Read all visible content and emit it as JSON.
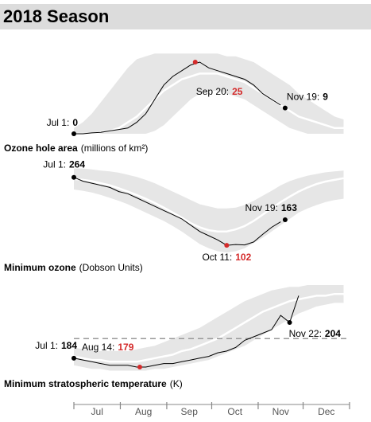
{
  "title": "2018 Season",
  "x_axis": {
    "xlim": [
      0,
      184
    ],
    "xticks": [
      0,
      31,
      62,
      92,
      123,
      153,
      184
    ],
    "categories": [
      "Jul",
      "Aug",
      "Sep",
      "Oct",
      "Nov",
      "Dec"
    ]
  },
  "chart_data": [
    {
      "type": "line",
      "title": "Ozone hole area",
      "unit_label": "(millions of km²)",
      "ylim": [
        0,
        30
      ],
      "color": "#000000",
      "x": [
        0,
        6,
        12,
        18,
        24,
        30,
        36,
        42,
        48,
        54,
        60,
        66,
        72,
        78,
        84,
        90,
        96,
        102,
        108,
        114,
        120,
        126,
        132,
        138,
        144,
        150,
        156,
        162,
        168,
        174,
        180
      ],
      "values": [
        0,
        0,
        0.3,
        0.5,
        1,
        1.5,
        2,
        4,
        7,
        12,
        17,
        20,
        22,
        24,
        25,
        23,
        22,
        21,
        20,
        19,
        17,
        14,
        12,
        10,
        null,
        null,
        null,
        null,
        null,
        null,
        null
      ],
      "band": {
        "color": "#e6e6e6",
        "high": [
          2,
          4,
          7,
          11,
          15,
          19,
          23,
          26,
          27,
          28,
          28,
          28,
          28,
          28,
          28,
          28,
          28,
          27,
          27,
          26,
          25,
          23,
          21,
          19,
          17,
          14,
          12,
          10,
          8,
          6,
          5
        ],
        "low": [
          0,
          0,
          0,
          0,
          0,
          0,
          0,
          0,
          0,
          1,
          3,
          6,
          9,
          12,
          14,
          15,
          15,
          14,
          13,
          12,
          10,
          8,
          6,
          4,
          2,
          1,
          0,
          0,
          0,
          0,
          0
        ]
      },
      "average": {
        "color": "#ffffff",
        "values": [
          0,
          0,
          0,
          0.5,
          1,
          2,
          4,
          6,
          9,
          12,
          15,
          17,
          19,
          20,
          21,
          21,
          21,
          20,
          19,
          18,
          16,
          14,
          12,
          10,
          8,
          6,
          5,
          4,
          3,
          2,
          2
        ]
      },
      "annotations": [
        {
          "label": "Jul 1:",
          "value": 0,
          "x": 0,
          "color": "#000000"
        },
        {
          "label": "Sep 20:",
          "value": 25,
          "x": 81,
          "color": "#d42a2a"
        },
        {
          "label": "Nov 19:",
          "value": 9,
          "x": 141,
          "color": "#000000"
        }
      ]
    },
    {
      "type": "line",
      "title": "Minimum ozone",
      "unit_label": "(Dobson Units)",
      "ylim": [
        70,
        290
      ],
      "color": "#000000",
      "x": [
        0,
        6,
        12,
        18,
        24,
        30,
        36,
        42,
        48,
        54,
        60,
        66,
        72,
        78,
        84,
        90,
        96,
        102,
        108,
        114,
        120,
        126,
        132,
        138,
        144,
        150,
        156,
        162,
        168,
        174,
        180
      ],
      "values": [
        264,
        255,
        250,
        245,
        240,
        230,
        225,
        215,
        205,
        195,
        185,
        175,
        165,
        150,
        135,
        125,
        115,
        102,
        104,
        103,
        110,
        128,
        145,
        158,
        null,
        null,
        null,
        null,
        null,
        null,
        null
      ],
      "band": {
        "color": "#e6e6e6",
        "high": [
          285,
          285,
          283,
          280,
          278,
          275,
          270,
          265,
          258,
          250,
          240,
          230,
          220,
          210,
          200,
          195,
          190,
          190,
          192,
          198,
          208,
          220,
          232,
          245,
          255,
          262,
          268,
          272,
          276,
          278,
          280
        ],
        "low": [
          235,
          232,
          228,
          222,
          215,
          208,
          200,
          190,
          180,
          170,
          160,
          148,
          135,
          120,
          105,
          95,
          88,
          85,
          88,
          95,
          108,
          120,
          135,
          150,
          165,
          180,
          190,
          198,
          205,
          210,
          213
        ]
      },
      "average": {
        "color": "#ffffff",
        "values": [
          260,
          258,
          255,
          250,
          245,
          238,
          230,
          222,
          213,
          203,
          192,
          180,
          168,
          155,
          145,
          138,
          135,
          135,
          140,
          148,
          160,
          175,
          190,
          205,
          218,
          230,
          240,
          248,
          254,
          258,
          262
        ]
      },
      "annotations": [
        {
          "label": "Jul 1:",
          "value": 264,
          "x": 0,
          "color": "#000000"
        },
        {
          "label": "Oct 11:",
          "value": 102,
          "x": 102,
          "color": "#d42a2a"
        },
        {
          "label": "Nov 19:",
          "value": 163,
          "x": 141,
          "color": "#000000"
        }
      ]
    },
    {
      "type": "line",
      "title": "Minimum stratospheric temperature",
      "unit_label": "(K)",
      "ylim": [
        175,
        225
      ],
      "color": "#000000",
      "reference_line": 195,
      "x": [
        0,
        6,
        12,
        18,
        24,
        30,
        36,
        42,
        48,
        54,
        60,
        66,
        72,
        78,
        84,
        90,
        96,
        102,
        108,
        114,
        120,
        126,
        132,
        138,
        144,
        150,
        156,
        162,
        168,
        174,
        180
      ],
      "values": [
        184,
        183,
        182,
        181,
        180,
        180,
        180,
        179,
        179,
        180,
        181,
        181,
        182,
        183,
        184,
        185,
        187,
        188,
        190,
        194,
        196,
        198,
        200,
        208,
        204,
        219,
        null,
        null,
        null,
        null,
        null
      ],
      "band": {
        "color": "#e6e6e6",
        "high": [
          190,
          189,
          188,
          188,
          188,
          188,
          188,
          189,
          190,
          191,
          193,
          195,
          197,
          199,
          201,
          204,
          207,
          210,
          213,
          216,
          218,
          220,
          222,
          223,
          224,
          224,
          225,
          225,
          225,
          225,
          225
        ],
        "low": [
          180,
          179,
          178,
          178,
          177,
          177,
          177,
          177,
          177,
          178,
          178,
          179,
          180,
          181,
          182,
          183,
          185,
          187,
          189,
          191,
          194,
          197,
          200,
          203,
          206,
          209,
          211,
          213,
          214,
          215,
          215
        ]
      },
      "average": {
        "color": "#ffffff",
        "values": [
          185,
          184,
          183,
          183,
          182,
          182,
          182,
          182,
          183,
          184,
          185,
          186,
          188,
          189,
          191,
          193,
          195,
          198,
          201,
          204,
          207,
          210,
          212,
          214,
          216,
          217,
          218,
          219,
          219,
          220,
          220
        ]
      },
      "annotations": [
        {
          "label": "Jul 1:",
          "value": 184,
          "x": 0,
          "color": "#000000"
        },
        {
          "label": "Aug 14:",
          "value": 179,
          "x": 44,
          "color": "#d42a2a"
        },
        {
          "label": "Nov 22:",
          "value": 204,
          "x": 144,
          "color": "#000000"
        }
      ]
    }
  ]
}
